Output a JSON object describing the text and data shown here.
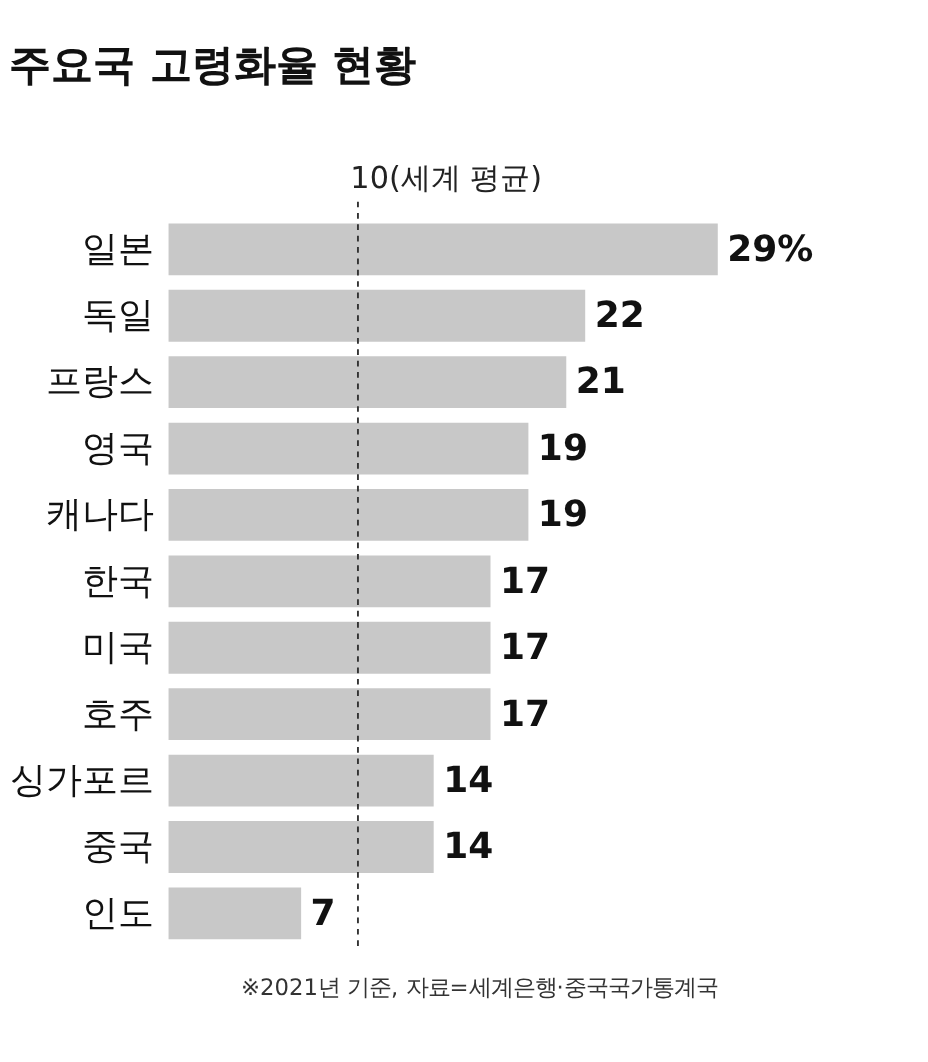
{
  "chart_data": {
    "type": "bar",
    "orientation": "horizontal",
    "title": "주요국 고령화율 현황",
    "categories": [
      "일본",
      "독일",
      "프랑스",
      "영국",
      "캐나다",
      "한국",
      "미국",
      "호주",
      "싱가포르",
      "중국",
      "인도"
    ],
    "values": [
      29,
      22,
      21,
      19,
      19,
      17,
      17,
      17,
      14,
      14,
      7
    ],
    "value_labels": [
      "29%",
      "22",
      "21",
      "19",
      "19",
      "17",
      "17",
      "17",
      "14",
      "14",
      "7"
    ],
    "color": "#c8c8c8",
    "tick_labels": "y",
    "grid": false,
    "ref_lines": [
      {
        "axis": "x",
        "value": 10,
        "label": "10(세계 평균)",
        "color": "#333333",
        "line_style": "dashed"
      }
    ],
    "annotations": [
      "※2021년 기준,  자료=세계은행·중국국가통계국"
    ]
  }
}
